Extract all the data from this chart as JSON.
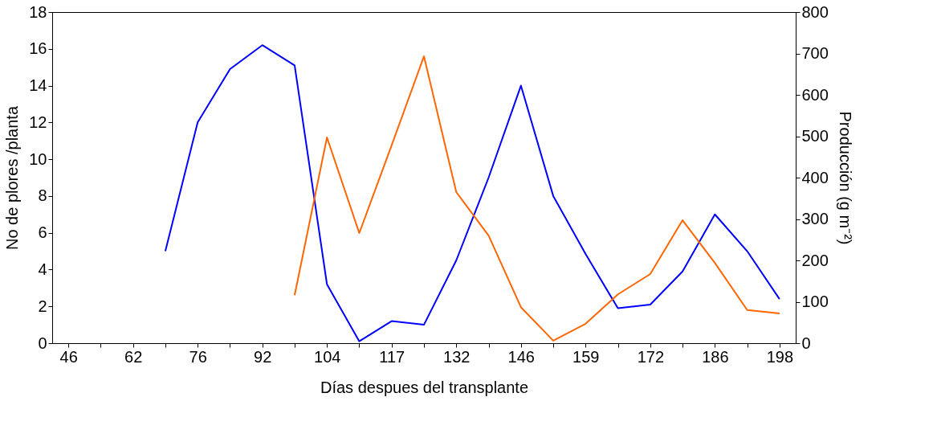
{
  "chart_data": {
    "type": "line",
    "xlabel": "Días despues del transplante",
    "ylabel": "No de plores /planta",
    "y2label": "Producción (g m⁻²)",
    "categories": [
      "46",
      null,
      "62",
      null,
      "76",
      null,
      "92",
      null,
      "104",
      null,
      "117",
      null,
      "132",
      null,
      "146",
      null,
      "159",
      null,
      "172",
      null,
      "186",
      null,
      "198"
    ],
    "series": [
      {
        "color": "#0000ff",
        "values": [
          null,
          null,
          null,
          5.0,
          12.0,
          14.9,
          16.2,
          15.1,
          3.2,
          0.1,
          1.2,
          1.0,
          4.5,
          9.0,
          14.0,
          8.0,
          4.85,
          1.9,
          2.1,
          3.9,
          7.0,
          5.0,
          2.4
        ]
      },
      {
        "color": "#ff6600",
        "axis": "y2",
        "values": [
          null,
          null,
          null,
          null,
          null,
          null,
          null,
          116,
          497,
          266,
          478,
          693,
          365,
          260,
          87,
          6,
          47,
          118,
          167,
          297,
          194,
          80,
          72
        ]
      }
    ],
    "ylim": [
      0,
      18
    ],
    "yticks": [
      0,
      2,
      4,
      6,
      8,
      10,
      12,
      14,
      16,
      18
    ],
    "y2lim": [
      0,
      800
    ],
    "y2ticks": [
      0,
      100,
      200,
      300,
      400,
      500,
      600,
      700,
      800
    ],
    "grid": false,
    "marker": "none",
    "line_style": "solid"
  }
}
